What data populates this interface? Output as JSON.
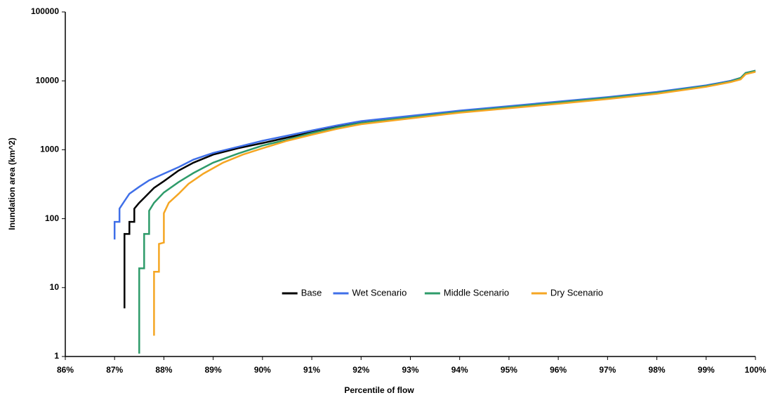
{
  "chart_data": {
    "type": "line",
    "ylabel": "Inundation area (km^2)",
    "xlabel": "Percentile of flow",
    "log_y": true,
    "grid": false,
    "legend": "center",
    "xlim": [
      86,
      100
    ],
    "xticks": [
      {
        "value": 86,
        "label": "86%"
      },
      {
        "value": 87,
        "label": "87%"
      },
      {
        "value": 88,
        "label": "88%"
      },
      {
        "value": 89,
        "label": "89%"
      },
      {
        "value": 90,
        "label": "90%"
      },
      {
        "value": 91,
        "label": "91%"
      },
      {
        "value": 92,
        "label": "92%"
      },
      {
        "value": 93,
        "label": "93%"
      },
      {
        "value": 94,
        "label": "94%"
      },
      {
        "value": 95,
        "label": "95%"
      },
      {
        "value": 96,
        "label": "96%"
      },
      {
        "value": 97,
        "label": "97%"
      },
      {
        "value": 98,
        "label": "98%"
      },
      {
        "value": 99,
        "label": "99%"
      },
      {
        "value": 100,
        "label": "100%"
      }
    ],
    "ylim": [
      1,
      100000
    ],
    "yticks": [
      1,
      10,
      100,
      1000,
      10000,
      100000
    ],
    "series": [
      {
        "name": "Base",
        "color": "#000000",
        "x": [
          87.2,
          87.2,
          87.3,
          87.3,
          87.4,
          87.4,
          87.5,
          87.6,
          87.8,
          88,
          88.3,
          88.6,
          89,
          89.5,
          90,
          90.5,
          91,
          91.5,
          92,
          93,
          94,
          95,
          96,
          97,
          98,
          99,
          99.5,
          99.7,
          99.8,
          100
        ],
        "values": [
          5,
          60,
          60,
          90,
          90,
          140,
          170,
          200,
          280,
          350,
          500,
          650,
          850,
          1050,
          1250,
          1500,
          1800,
          2150,
          2500,
          3000,
          3600,
          4200,
          4900,
          5700,
          6800,
          8500,
          10000,
          11000,
          13000,
          14000
        ]
      },
      {
        "name": "Wet Scenario",
        "color": "#3f6fe8",
        "x": [
          87,
          87,
          87.1,
          87.1,
          87.2,
          87.3,
          87.5,
          87.7,
          88,
          88.3,
          88.6,
          89,
          89.5,
          90,
          90.5,
          91,
          91.5,
          92,
          93,
          94,
          95,
          96,
          97,
          98,
          99,
          99.5,
          99.7,
          99.8,
          100
        ],
        "values": [
          50,
          90,
          90,
          140,
          180,
          230,
          290,
          360,
          450,
          560,
          720,
          900,
          1100,
          1350,
          1600,
          1900,
          2250,
          2600,
          3100,
          3700,
          4300,
          5000,
          5800,
          6900,
          8600,
          10000,
          11000,
          13000,
          14000
        ]
      },
      {
        "name": "Middle Scenario",
        "color": "#2e9b6a",
        "x": [
          87.5,
          87.5,
          87.6,
          87.6,
          87.7,
          87.7,
          87.8,
          88,
          88.3,
          88.6,
          89,
          89.5,
          90,
          90.5,
          91,
          91.5,
          92,
          93,
          94,
          95,
          96,
          97,
          98,
          99,
          99.5,
          99.7,
          99.8,
          100
        ],
        "values": [
          1.1,
          19,
          19,
          60,
          60,
          130,
          170,
          240,
          340,
          460,
          650,
          880,
          1150,
          1400,
          1750,
          2100,
          2450,
          2950,
          3550,
          4150,
          4850,
          5650,
          6700,
          8400,
          9800,
          11000,
          13000,
          14000
        ]
      },
      {
        "name": "Dry Scenario",
        "color": "#f5a623",
        "x": [
          87.8,
          87.8,
          87.9,
          87.9,
          88,
          88,
          88.1,
          88.3,
          88.5,
          88.8,
          89.2,
          89.6,
          90,
          90.5,
          91,
          91.5,
          92,
          93,
          94,
          95,
          96,
          97,
          98,
          99,
          99.5,
          99.7,
          99.8,
          100
        ],
        "values": [
          2,
          17,
          17,
          43,
          45,
          120,
          170,
          230,
          320,
          450,
          650,
          850,
          1050,
          1350,
          1650,
          2000,
          2350,
          2850,
          3450,
          4000,
          4650,
          5450,
          6500,
          8200,
          9600,
          10500,
          12500,
          13500
        ]
      }
    ]
  }
}
